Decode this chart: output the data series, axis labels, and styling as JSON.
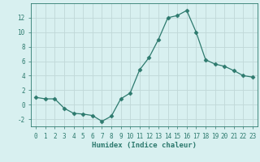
{
  "x": [
    0,
    1,
    2,
    3,
    4,
    5,
    6,
    7,
    8,
    9,
    10,
    11,
    12,
    13,
    14,
    15,
    16,
    17,
    18,
    19,
    20,
    21,
    22,
    23
  ],
  "y": [
    1.0,
    0.8,
    0.8,
    -0.5,
    -1.2,
    -1.3,
    -1.5,
    -2.3,
    -1.6,
    0.8,
    1.6,
    4.8,
    6.5,
    9.0,
    12.0,
    12.3,
    13.0,
    10.0,
    6.2,
    5.6,
    5.3,
    4.7,
    4.0,
    3.8
  ],
  "line_color": "#2d7a6e",
  "marker": "D",
  "marker_size": 2.5,
  "bg_color": "#d8f0f0",
  "grid_color": "#c0d8d8",
  "xlabel": "Humidex (Indice chaleur)",
  "ylim": [
    -3,
    14
  ],
  "xlim": [
    -0.5,
    23.5
  ],
  "yticks": [
    -2,
    0,
    2,
    4,
    6,
    8,
    10,
    12
  ],
  "xticks": [
    0,
    1,
    2,
    3,
    4,
    5,
    6,
    7,
    8,
    9,
    10,
    11,
    12,
    13,
    14,
    15,
    16,
    17,
    18,
    19,
    20,
    21,
    22,
    23
  ],
  "tick_color": "#2d7a6e",
  "label_fontsize": 6.5,
  "tick_fontsize": 5.5,
  "spine_color": "#2d7a6e"
}
